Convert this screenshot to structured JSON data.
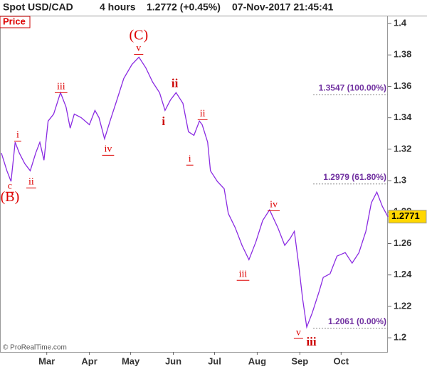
{
  "chart_data": {
    "type": "line",
    "header": [
      "Spot USD/CAD",
      "4 hours",
      "1.2772 (+0.45%)",
      "07-Nov-2017 21:45:41"
    ],
    "panel_label": "Price",
    "credit": "© ProRealTime.com",
    "x": [
      27,
      31,
      34,
      37,
      40,
      44,
      48,
      52,
      55,
      58,
      61,
      65,
      70,
      74,
      77,
      80,
      85,
      91,
      95,
      98,
      102,
      106,
      111,
      116,
      122,
      127,
      132,
      137,
      142,
      146,
      150,
      154,
      159,
      163,
      167,
      171,
      173,
      177,
      179,
      184,
      189,
      192,
      197,
      202,
      207,
      212,
      217,
      222,
      228,
      233,
      237,
      240,
      243,
      246,
      249,
      253,
      258,
      261,
      266,
      271,
      277,
      282,
      287,
      292,
      296,
      300,
      304,
      308
    ],
    "series": [
      {
        "name": "Price",
        "color": "#8a2be2",
        "values": [
          1.3176,
          1.3063,
          1.2995,
          1.3244,
          1.3176,
          1.3108,
          1.3063,
          1.3176,
          1.3244,
          1.313,
          1.3379,
          1.3424,
          1.356,
          1.3469,
          1.3334,
          1.3424,
          1.3401,
          1.3356,
          1.3447,
          1.3401,
          1.3266,
          1.3379,
          1.3514,
          1.365,
          1.374,
          1.3786,
          1.3718,
          1.3627,
          1.356,
          1.3447,
          1.3514,
          1.356,
          1.3492,
          1.3311,
          1.3288,
          1.3379,
          1.3356,
          1.3244,
          1.3063,
          1.2995,
          1.2949,
          1.2791,
          1.2701,
          1.2588,
          1.2497,
          1.261,
          1.2746,
          1.2814,
          1.2701,
          1.2588,
          1.2633,
          1.2678,
          1.2475,
          1.2249,
          1.2068,
          1.2158,
          1.2294,
          1.2384,
          1.2407,
          1.252,
          1.2542,
          1.2475,
          1.2542,
          1.2678,
          1.2859,
          1.2927,
          1.2836,
          1.2771
        ]
      }
    ],
    "xlim": [
      26,
      308
    ],
    "xticks": [
      {
        "value": 60,
        "label": "Mar"
      },
      {
        "value": 91,
        "label": "Apr"
      },
      {
        "value": 121,
        "label": "May"
      },
      {
        "value": 152,
        "label": "Jun"
      },
      {
        "value": 182,
        "label": "Jul"
      },
      {
        "value": 213,
        "label": "Aug"
      },
      {
        "value": 244,
        "label": "Sep"
      },
      {
        "value": 274,
        "label": "Oct"
      }
    ],
    "ylim": [
      1.191,
      1.405
    ],
    "yticks": [
      1.2,
      1.22,
      1.24,
      1.26,
      1.28,
      1.3,
      1.32,
      1.34,
      1.36,
      1.38,
      1.4
    ],
    "last_price": 1.2771,
    "levels": [
      {
        "value": 1.3547,
        "label": "1.3547 (100.00%)"
      },
      {
        "value": 1.2979,
        "label": "1.2979 (61.80%)"
      },
      {
        "value": 1.2061,
        "label": "1.2061 (0.00%)"
      }
    ],
    "annotations": [
      {
        "text": "(B)",
        "x": 33.2,
        "y": 1.289,
        "style": "big"
      },
      {
        "text": "c",
        "x": 33.2,
        "y": 1.2963,
        "style": "small"
      },
      {
        "text": "i",
        "x": 38.9,
        "y": 1.3288,
        "style": "small"
      },
      {
        "text": "ii",
        "x": 48.7,
        "y": 1.299,
        "style": "small"
      },
      {
        "text": "iii",
        "x": 70.4,
        "y": 1.3596,
        "style": "small"
      },
      {
        "text": "iv",
        "x": 104.6,
        "y": 1.3198,
        "style": "small"
      },
      {
        "text": "(C)",
        "x": 126.8,
        "y": 1.392,
        "style": "big"
      },
      {
        "text": "v",
        "x": 126.8,
        "y": 1.384,
        "style": "small"
      },
      {
        "text": "ii",
        "x": 153.1,
        "y": 1.3614,
        "style": "bold"
      },
      {
        "text": "i",
        "x": 144.9,
        "y": 1.337,
        "style": "bold"
      },
      {
        "text": "i",
        "x": 164,
        "y": 1.3135,
        "style": "small"
      },
      {
        "text": "ii",
        "x": 173.3,
        "y": 1.3424,
        "style": "small"
      },
      {
        "text": "iii",
        "x": 202.7,
        "y": 1.2402,
        "style": "small"
      },
      {
        "text": "iv",
        "x": 225,
        "y": 1.2845,
        "style": "small"
      },
      {
        "text": "v",
        "x": 243,
        "y": 1.2032,
        "style": "small"
      },
      {
        "text": "iii",
        "x": 252.4,
        "y": 1.1968,
        "style": "bold"
      }
    ]
  }
}
